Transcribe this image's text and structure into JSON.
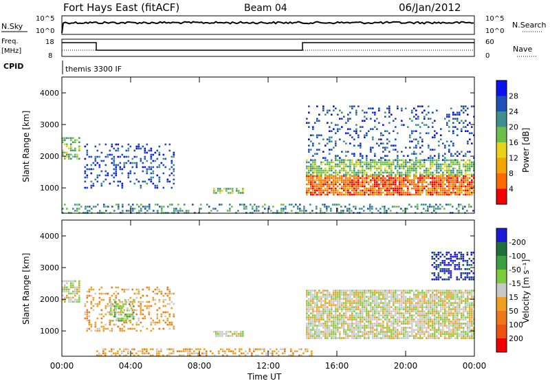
{
  "header": {
    "station": "Fort Hays East (fitACF)",
    "beam": "Beam 04",
    "date": "06/Jan/2012"
  },
  "noise_panel": {
    "left_label": "N.Sky",
    "right_label": "N.Search",
    "left_ticks": [
      "10^5",
      "10^0"
    ],
    "right_ticks": [
      "10^5",
      "10^0"
    ]
  },
  "freq_panel": {
    "left_label_1": "Freq.",
    "left_label_2": "[MHz]",
    "right_label": "Nave",
    "left_ticks": [
      "18",
      "8"
    ],
    "right_ticks": [
      "60",
      "0"
    ],
    "cpid_label": "CPID",
    "cpid_value": "themis 3300 IF"
  },
  "chart_data": [
    {
      "type": "heatmap",
      "title": "",
      "ylabel": "Slant Range [km]",
      "xlabel": "",
      "x_ticks": [
        "00:00",
        "04:00",
        "08:00",
        "12:00",
        "16:00",
        "20:00",
        "00:00"
      ],
      "y_ticks": [
        "1000",
        "2000",
        "3000",
        "4000"
      ],
      "ylim": [
        200,
        4500
      ],
      "colorbar_label": "Power [dB]",
      "colorbar_ticks": [
        "4",
        "8",
        "12",
        "16",
        "20",
        "24",
        "28"
      ],
      "colorbar_colors": [
        "#0a12f0",
        "#1f4fb8",
        "#3f8f8f",
        "#6cbf4a",
        "#e8d21a",
        "#f5a500",
        "#ff6a00",
        "#f50000"
      ],
      "regions": [
        {
          "t0": 0.0,
          "t1": 1.0,
          "r0": 1900,
          "r1": 2600,
          "level": 3,
          "density": 0.6
        },
        {
          "t0": 1.3,
          "t1": 6.5,
          "r0": 1000,
          "r1": 2400,
          "level": 1,
          "density": 0.25
        },
        {
          "t0": 8.8,
          "t1": 10.5,
          "r0": 850,
          "r1": 1000,
          "level": 3,
          "density": 0.7
        },
        {
          "t0": 14.2,
          "t1": 24.0,
          "r0": 800,
          "r1": 1400,
          "level": 6,
          "density": 0.85
        },
        {
          "t0": 14.2,
          "t1": 24.0,
          "r0": 1400,
          "r1": 1900,
          "level": 3,
          "density": 0.7
        },
        {
          "t0": 14.2,
          "t1": 24.0,
          "r0": 1900,
          "r1": 3600,
          "level": 1,
          "density": 0.18
        },
        {
          "t0": 0.0,
          "t1": 24.0,
          "r0": 200,
          "r1": 500,
          "level": 2,
          "density": 0.35
        }
      ]
    },
    {
      "type": "heatmap",
      "title": "",
      "ylabel": "Slant Range [km]",
      "xlabel": "Time UT",
      "x_ticks": [
        "00:00",
        "04:00",
        "08:00",
        "12:00",
        "16:00",
        "20:00",
        "00:00"
      ],
      "y_ticks": [
        "1000",
        "2000",
        "3000",
        "4000"
      ],
      "ylim": [
        200,
        4500
      ],
      "colorbar_label": "Velocity [m s⁻¹]",
      "colorbar_ticks": [
        "200",
        "100",
        "50",
        "15",
        "-15",
        "-50",
        "-100",
        "-200"
      ],
      "colorbar_colors": [
        "#1a1ad8",
        "#1f6f3a",
        "#3aa040",
        "#7ccd3c",
        "#c8c8c8",
        "#f0a020",
        "#f07818",
        "#f05010",
        "#f00000"
      ],
      "regions": [
        {
          "t0": 0.0,
          "t1": 1.0,
          "r0": 1900,
          "r1": 2600,
          "level": 4,
          "density": 0.7
        },
        {
          "t0": 1.3,
          "t1": 6.5,
          "r0": 1000,
          "r1": 2400,
          "level": 5,
          "density": 0.3
        },
        {
          "t0": 2.8,
          "t1": 4.2,
          "r0": 1300,
          "r1": 2000,
          "level": 3,
          "density": 0.5
        },
        {
          "t0": 8.8,
          "t1": 10.5,
          "r0": 850,
          "r1": 1000,
          "level": 4,
          "density": 0.7
        },
        {
          "t0": 14.2,
          "t1": 24.0,
          "r0": 800,
          "r1": 2300,
          "level": 4,
          "density": 0.85
        },
        {
          "t0": 21.5,
          "t1": 24.0,
          "r0": 2600,
          "r1": 3500,
          "level": 0,
          "density": 0.5
        },
        {
          "t0": 2.0,
          "t1": 14.5,
          "r0": 200,
          "r1": 450,
          "level": 5,
          "density": 0.45
        }
      ]
    }
  ]
}
